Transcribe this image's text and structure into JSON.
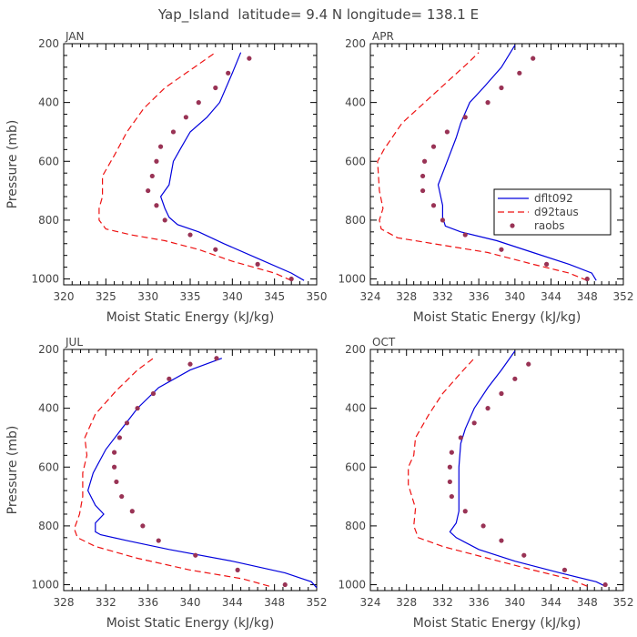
{
  "figure_title": "Yap_Island  latitude= 9.4 N longitude= 138.1 E",
  "legend": {
    "entries": [
      {
        "label": "dflt092",
        "style": "solid",
        "color": "#0000dd"
      },
      {
        "label": "d92taus",
        "style": "dashed",
        "color": "#ee1111"
      },
      {
        "label": "raobs",
        "style": "dot",
        "color": "#993355"
      }
    ]
  },
  "chart_data": [
    {
      "type": "line",
      "panel_label": "JAN",
      "xlabel": "Moist Static Energy (kJ/kg)",
      "ylabel": "Pressure (mb)",
      "xlim": [
        320,
        350
      ],
      "xticks": [
        320,
        325,
        330,
        335,
        340,
        345,
        350
      ],
      "ylim": [
        1020,
        200
      ],
      "yticks": [
        200,
        400,
        600,
        800,
        1000
      ],
      "series": [
        {
          "name": "dflt092",
          "x": [
            348.5,
            347,
            343,
            339,
            336,
            333.5,
            332.5,
            332,
            331.5,
            332.5,
            333,
            334,
            335,
            337,
            338.5,
            340,
            341
          ],
          "y": [
            1005,
            980,
            930,
            880,
            840,
            815,
            790,
            760,
            720,
            680,
            600,
            550,
            500,
            450,
            400,
            300,
            230
          ]
        },
        {
          "name": "d92taus",
          "x": [
            347,
            345,
            340,
            336,
            332,
            328,
            325,
            324.2,
            324.2,
            324.6,
            324.6,
            326,
            327.5,
            329.5,
            332,
            335,
            338
          ],
          "y": [
            1005,
            980,
            940,
            900,
            870,
            850,
            830,
            800,
            760,
            720,
            650,
            580,
            500,
            420,
            350,
            290,
            230
          ]
        },
        {
          "name": "raobs",
          "x": [
            347,
            343,
            338,
            335,
            332,
            331,
            330,
            330.5,
            331,
            331.5,
            333,
            334.5,
            336,
            338,
            339.5,
            342
          ],
          "y": [
            1000,
            950,
            900,
            850,
            800,
            750,
            700,
            650,
            600,
            550,
            500,
            450,
            400,
            350,
            300,
            250
          ]
        }
      ]
    },
    {
      "type": "line",
      "panel_label": "APR",
      "xlabel": "Moist Static Energy (kJ/kg)",
      "ylabel": "",
      "xlim": [
        324,
        352
      ],
      "xticks": [
        324,
        328,
        332,
        336,
        340,
        344,
        348,
        352
      ],
      "ylim": [
        1020,
        200
      ],
      "yticks": [
        200,
        400,
        600,
        800,
        1000
      ],
      "series": [
        {
          "name": "dflt092",
          "x": [
            349,
            348.5,
            346,
            342,
            338,
            334,
            332.3,
            332,
            332,
            331.5,
            332.5,
            333.5,
            334,
            335,
            336.5,
            338.5,
            340
          ],
          "y": [
            1005,
            980,
            950,
            910,
            870,
            840,
            820,
            790,
            750,
            680,
            600,
            520,
            470,
            400,
            350,
            280,
            205
          ]
        },
        {
          "name": "d92taus",
          "x": [
            348,
            346,
            342,
            337,
            331,
            327,
            325.2,
            325,
            325.4,
            325,
            324.8,
            325.5,
            327.5,
            330,
            332.5,
            335,
            336
          ],
          "y": [
            1005,
            980,
            950,
            910,
            880,
            860,
            830,
            800,
            760,
            700,
            600,
            560,
            470,
            400,
            330,
            260,
            230
          ]
        },
        {
          "name": "raobs",
          "x": [
            348,
            343.5,
            338.5,
            334.5,
            332,
            331,
            329.8,
            329.8,
            330,
            331,
            332.5,
            334.5,
            337,
            338.5,
            340.5,
            342
          ],
          "y": [
            1000,
            950,
            900,
            850,
            800,
            750,
            700,
            650,
            600,
            550,
            500,
            450,
            400,
            350,
            300,
            250
          ]
        }
      ]
    },
    {
      "type": "line",
      "panel_label": "JUL",
      "xlabel": "Moist Static Energy (kJ/kg)",
      "ylabel": "Pressure (mb)",
      "xlim": [
        328,
        352
      ],
      "xticks": [
        328,
        332,
        336,
        340,
        344,
        348,
        352
      ],
      "ylim": [
        1020,
        200
      ],
      "yticks": [
        200,
        400,
        600,
        800,
        1000
      ],
      "series": [
        {
          "name": "dflt092",
          "x": [
            352,
            351.5,
            349,
            344,
            338,
            334,
            331.5,
            331,
            331,
            331.8,
            331,
            330.3,
            330.8,
            332,
            333.5,
            335,
            337,
            340,
            343
          ],
          "y": [
            1010,
            990,
            960,
            920,
            880,
            850,
            830,
            820,
            790,
            760,
            730,
            680,
            620,
            540,
            470,
            400,
            330,
            270,
            230
          ]
        },
        {
          "name": "d92taus",
          "x": [
            347.5,
            345,
            340,
            335,
            331,
            329.3,
            329,
            329.5,
            329.8,
            329.8,
            330.2,
            330,
            331,
            333,
            335,
            336.5
          ],
          "y": [
            1005,
            980,
            950,
            910,
            870,
            840,
            810,
            760,
            700,
            620,
            560,
            500,
            420,
            340,
            270,
            230
          ]
        },
        {
          "name": "raobs",
          "x": [
            349,
            344.5,
            340.5,
            337,
            335.5,
            334.5,
            333.5,
            333,
            332.8,
            332.8,
            333.3,
            334,
            335,
            336.5,
            338,
            340,
            342.5
          ],
          "y": [
            1000,
            950,
            900,
            850,
            800,
            750,
            700,
            650,
            600,
            550,
            500,
            450,
            400,
            350,
            300,
            250,
            230
          ]
        }
      ]
    },
    {
      "type": "line",
      "panel_label": "OCT",
      "xlabel": "Moist Static Energy (kJ/kg)",
      "ylabel": "",
      "xlim": [
        324,
        352
      ],
      "xticks": [
        324,
        328,
        332,
        336,
        340,
        344,
        348,
        352
      ],
      "ylim": [
        1020,
        200
      ],
      "yticks": [
        200,
        400,
        600,
        800,
        1000
      ],
      "series": [
        {
          "name": "dflt092",
          "x": [
            350,
            349,
            345,
            340,
            336,
            333.5,
            332.8,
            333.5,
            333.8,
            333.8,
            333.8,
            334,
            334.5,
            335.5,
            337,
            338.5,
            340
          ],
          "y": [
            1005,
            990,
            960,
            920,
            880,
            840,
            820,
            790,
            750,
            680,
            600,
            520,
            470,
            400,
            330,
            270,
            205
          ]
        },
        {
          "name": "d92taus",
          "x": [
            348,
            346,
            342,
            337,
            332,
            329.3,
            328.8,
            329,
            328.2,
            328.2,
            328.8,
            329,
            330.5,
            332,
            334,
            335.5
          ],
          "y": [
            1005,
            980,
            950,
            910,
            870,
            840,
            800,
            740,
            660,
            600,
            560,
            500,
            420,
            350,
            280,
            230
          ]
        },
        {
          "name": "raobs",
          "x": [
            350,
            345.5,
            341,
            338.5,
            336.5,
            334.5,
            333,
            332.8,
            332.8,
            333,
            334,
            335.5,
            337,
            338.5,
            340,
            341.5
          ],
          "y": [
            1000,
            950,
            900,
            850,
            800,
            750,
            700,
            650,
            600,
            550,
            500,
            450,
            400,
            350,
            300,
            250
          ]
        }
      ]
    }
  ]
}
